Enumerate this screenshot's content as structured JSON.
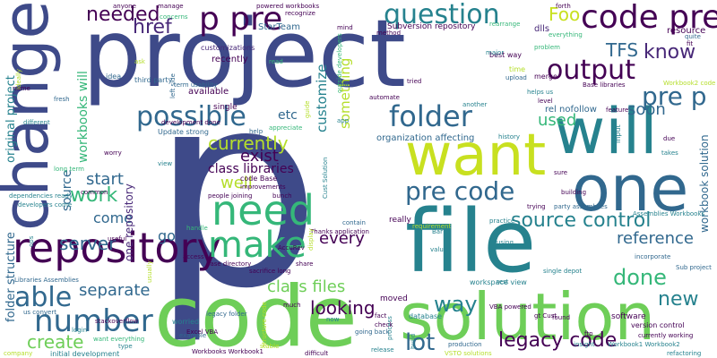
{
  "palette": {
    "purple": "#440154",
    "indigo": "#482878",
    "blue": "#3e4a89",
    "steel": "#31688e",
    "teal": "#26828e",
    "green": "#1f9e89",
    "mint": "#35b779",
    "lime": "#6ece58",
    "yellowgreen": "#b5de2b",
    "yellow": "#fde725"
  },
  "words": [
    {
      "text": "p",
      "color": "#3e4a89"
    },
    {
      "text": "project",
      "color": "#3e4a89"
    },
    {
      "text": "code",
      "color": "#6ece58"
    },
    {
      "text": "file",
      "color": "#26828e"
    },
    {
      "text": "change",
      "color": "#3e4a89"
    },
    {
      "text": "solution",
      "color": "#6ece58"
    },
    {
      "text": "want",
      "color": "#c8e020"
    },
    {
      "text": "will",
      "color": "#26828e"
    },
    {
      "text": "one",
      "color": "#31688e"
    },
    {
      "text": "repository",
      "color": "#440154"
    },
    {
      "text": "need",
      "color": "#35b779"
    },
    {
      "text": "make",
      "color": "#35b779"
    },
    {
      "text": "p pre",
      "color": "#440154"
    },
    {
      "text": "code pre",
      "color": "#440154"
    },
    {
      "text": "number",
      "color": "#31688e"
    },
    {
      "text": "question",
      "color": "#26828e"
    },
    {
      "text": "folder",
      "color": "#31688e"
    },
    {
      "text": "possible",
      "color": "#31688e"
    },
    {
      "text": "output",
      "color": "#440154"
    },
    {
      "text": "pre code",
      "color": "#31688e"
    },
    {
      "text": "source control",
      "color": "#26828e"
    },
    {
      "text": "able",
      "color": "#31688e"
    },
    {
      "text": "lot",
      "color": "#31688e"
    },
    {
      "text": "legacy code",
      "color": "#440154"
    },
    {
      "text": "done",
      "color": "#35b779"
    },
    {
      "text": "new",
      "color": "#26828e"
    },
    {
      "text": "work",
      "color": "#35b779"
    },
    {
      "text": "way",
      "color": "#26828e"
    },
    {
      "text": "pre p",
      "color": "#31688e"
    },
    {
      "text": "needed",
      "color": "#440154"
    },
    {
      "text": "href",
      "color": "#482878"
    },
    {
      "text": "TFS",
      "color": "#31688e"
    },
    {
      "text": "know",
      "color": "#482878"
    },
    {
      "text": "Foo",
      "color": "#c8e020"
    },
    {
      "text": "currently",
      "color": "#b5de2b"
    },
    {
      "text": "used",
      "color": "#35b779"
    },
    {
      "text": "soon",
      "color": "#31688e"
    },
    {
      "text": "reference",
      "color": "#31688e"
    },
    {
      "text": "class files",
      "color": "#6ece58"
    },
    {
      "text": "looking",
      "color": "#440154"
    },
    {
      "text": "every",
      "color": "#440154"
    },
    {
      "text": "server",
      "color": "#31688e"
    },
    {
      "text": "separate",
      "color": "#31688e"
    },
    {
      "text": "create",
      "color": "#6ece58"
    },
    {
      "text": "exist",
      "color": "#440154"
    },
    {
      "text": "well",
      "color": "#b5de2b"
    },
    {
      "text": "class libraries",
      "color": "#440154"
    },
    {
      "text": "start",
      "color": "#31688e"
    },
    {
      "text": "come",
      "color": "#31688e"
    },
    {
      "text": "go",
      "color": "#31688e"
    },
    {
      "text": "customize",
      "color": "#26828e"
    },
    {
      "text": "something",
      "color": "#b5de2b"
    },
    {
      "text": "etc",
      "color": "#31688e"
    },
    {
      "text": "workbooks will",
      "color": "#35b779"
    },
    {
      "text": "source",
      "color": "#31688e"
    },
    {
      "text": "original project",
      "color": "#26828e"
    },
    {
      "text": "folder structure",
      "color": "#31688e"
    },
    {
      "text": "workbook solution",
      "color": "#31688e"
    },
    {
      "text": "one repository",
      "color": "#482878"
    },
    {
      "text": "rel nofollow",
      "color": "#31688e"
    },
    {
      "text": "organization affecting",
      "color": "#31688e"
    },
    {
      "text": "dlls",
      "color": "#482878"
    },
    {
      "text": "resource",
      "color": "#440154"
    },
    {
      "text": "recently",
      "color": "#440154"
    },
    {
      "text": "customizations",
      "color": "#482878"
    },
    {
      "text": "StarTeam",
      "color": "#31688e"
    },
    {
      "text": "Subversion repository",
      "color": "#440154"
    },
    {
      "text": "Update strong",
      "color": "#31688e"
    },
    {
      "text": "code Base",
      "color": "#440154"
    },
    {
      "text": "available",
      "color": "#440154"
    },
    {
      "text": "single",
      "color": "#440154"
    },
    {
      "text": "third party",
      "color": "#31688e"
    },
    {
      "text": "idea",
      "color": "#31688e"
    },
    {
      "text": "time",
      "color": "#b5de2b"
    },
    {
      "text": "best way",
      "color": "#440154"
    },
    {
      "text": "merge",
      "color": "#440154"
    },
    {
      "text": "upload",
      "color": "#31688e"
    },
    {
      "text": "improvements",
      "color": "#440154"
    },
    {
      "text": "party assemblies",
      "color": "#31688e"
    },
    {
      "text": "people joining",
      "color": "#440154"
    },
    {
      "text": "Assemblies Workbooks",
      "color": "#26828e"
    },
    {
      "text": "VBA powered",
      "color": "#440154"
    },
    {
      "text": "workspace view",
      "color": "#26828e"
    },
    {
      "text": "production",
      "color": "#31688e"
    },
    {
      "text": "VSTO solutions",
      "color": "#b5de2b"
    },
    {
      "text": "version control",
      "color": "#440154"
    },
    {
      "text": "currently working",
      "color": "#440154"
    },
    {
      "text": "Workbook1 Workbook2",
      "color": "#26828e"
    },
    {
      "text": "refactoring",
      "color": "#26828e"
    },
    {
      "text": "software",
      "color": "#440154"
    },
    {
      "text": "Sub project",
      "color": "#31688e"
    },
    {
      "text": "database",
      "color": "#26828e"
    },
    {
      "text": "gt Cust",
      "color": "#440154"
    },
    {
      "text": "moved",
      "color": "#440154"
    },
    {
      "text": "really",
      "color": "#440154"
    },
    {
      "text": "Thanks application",
      "color": "#440154"
    },
    {
      "text": "contain",
      "color": "#31688e"
    },
    {
      "text": "legacy folder",
      "color": "#31688e"
    },
    {
      "text": "Excel VBA",
      "color": "#440154"
    },
    {
      "text": "worried",
      "color": "#26828e"
    },
    {
      "text": "initial development",
      "color": "#26828e"
    },
    {
      "text": "Workbooks Workbook1",
      "color": "#440154"
    },
    {
      "text": "going back",
      "color": "#31688e"
    },
    {
      "text": "stackoverflow",
      "color": "#440154"
    },
    {
      "text": "want everything",
      "color": "#35b779"
    },
    {
      "text": "us convert",
      "color": "#31688e"
    },
    {
      "text": "Libraries Assemblies",
      "color": "#31688e"
    },
    {
      "text": "developers come",
      "color": "#26828e"
    },
    {
      "text": "dependencies ready",
      "color": "#26828e"
    },
    {
      "text": "common",
      "color": "#440154"
    },
    {
      "text": "worry",
      "color": "#440154"
    },
    {
      "text": "long term",
      "color": "#35b779"
    },
    {
      "text": "powered workbooks",
      "color": "#440154"
    },
    {
      "text": "recognize",
      "color": "#440154"
    },
    {
      "text": "manage",
      "color": "#440154"
    },
    {
      "text": "anyone",
      "color": "#440154"
    },
    {
      "text": "Base libraries",
      "color": "#440154"
    },
    {
      "text": "helps us",
      "color": "#26828e"
    },
    {
      "text": "feature",
      "color": "#440154"
    },
    {
      "text": "input",
      "color": "#26828e"
    },
    {
      "text": "process",
      "color": "#26828e"
    },
    {
      "text": "found",
      "color": "#440154"
    },
    {
      "text": "insight",
      "color": "#26828e"
    },
    {
      "text": "ftp",
      "color": "#440154"
    },
    {
      "text": "AccuRev",
      "color": "#440154"
    },
    {
      "text": "share",
      "color": "#440154"
    },
    {
      "text": "much",
      "color": "#440154"
    },
    {
      "text": "login",
      "color": "#26828e"
    },
    {
      "text": "example",
      "color": "#31688e"
    },
    {
      "text": "type",
      "color": "#26828e"
    },
    {
      "text": "release",
      "color": "#26828e"
    },
    {
      "text": "difficult",
      "color": "#440154"
    },
    {
      "text": "view",
      "color": "#26828e"
    },
    {
      "text": "useful",
      "color": "#440154"
    },
    {
      "text": "building",
      "color": "#440154"
    },
    {
      "text": "using",
      "color": "#26828e"
    },
    {
      "text": "incorporate",
      "color": "#31688e"
    },
    {
      "text": "Bar",
      "color": "#26828e"
    },
    {
      "text": "single depot",
      "color": "#26828e"
    },
    {
      "text": "value",
      "color": "#26828e"
    },
    {
      "text": "trying",
      "color": "#440154"
    },
    {
      "text": "tried",
      "color": "#440154"
    },
    {
      "text": "method",
      "color": "#440154"
    },
    {
      "text": "automate",
      "color": "#440154"
    },
    {
      "text": "another",
      "color": "#26828e"
    },
    {
      "text": "level",
      "color": "#440154"
    },
    {
      "text": "history",
      "color": "#26828e"
    },
    {
      "text": "due",
      "color": "#440154"
    },
    {
      "text": "fit",
      "color": "#440154"
    },
    {
      "text": "mind",
      "color": "#440154"
    },
    {
      "text": "forth",
      "color": "#440154"
    },
    {
      "text": "takes",
      "color": "#26828e"
    },
    {
      "text": "quite",
      "color": "#31688e"
    },
    {
      "text": "sure",
      "color": "#440154"
    },
    {
      "text": "left side",
      "color": "#31688e"
    },
    {
      "text": "term usability",
      "color": "#31688e"
    },
    {
      "text": "name",
      "color": "#440154"
    },
    {
      "text": "fresh",
      "color": "#31688e"
    },
    {
      "text": "different",
      "color": "#26828e"
    },
    {
      "text": "help",
      "color": "#31688e"
    },
    {
      "text": "appreciate",
      "color": "#35b779"
    },
    {
      "text": "bunch",
      "color": "#440154"
    },
    {
      "text": "development done",
      "color": "#440154"
    },
    {
      "text": "handle",
      "color": "#35b779"
    },
    {
      "text": "access",
      "color": "#440154"
    },
    {
      "text": "base directory",
      "color": "#440154"
    },
    {
      "text": "sacrifice long",
      "color": "#440154"
    },
    {
      "text": "now",
      "color": "#26828e"
    },
    {
      "text": "fact",
      "color": "#440154"
    },
    {
      "text": "check",
      "color": "#440154"
    },
    {
      "text": "rest",
      "color": "#26828e"
    },
    {
      "text": "practice",
      "color": "#26828e"
    },
    {
      "text": "build",
      "color": "#26828e"
    },
    {
      "text": "Cust Solution",
      "color": "#26828e"
    },
    {
      "text": "major",
      "color": "#26828e"
    },
    {
      "text": "app",
      "color": "#26828e"
    },
    {
      "text": "concerns",
      "color": "#35b779"
    },
    {
      "text": "problem",
      "color": "#35b779"
    },
    {
      "text": "rearrange",
      "color": "#35b779"
    },
    {
      "text": "everything",
      "color": "#35b779"
    },
    {
      "text": "Workbook2 code",
      "color": "#b5de2b"
    },
    {
      "text": "outside developers",
      "color": "#35b779"
    },
    {
      "text": "guide",
      "color": "#b5de2b"
    },
    {
      "text": "bit",
      "color": "#31688e"
    },
    {
      "text": "read",
      "color": "#35b779"
    },
    {
      "text": "ask",
      "color": "#b5de2b"
    },
    {
      "text": "requirement",
      "color": "#b5de2b"
    },
    {
      "text": "ops",
      "color": "#26828e"
    },
    {
      "text": "company",
      "color": "#b5de2b"
    },
    {
      "text": "stable",
      "color": "#b5de2b"
    },
    {
      "text": "structure code",
      "color": "#b5de2b"
    },
    {
      "text": "display",
      "color": "#b5de2b"
    },
    {
      "text": "usually",
      "color": "#b5de2b"
    },
    {
      "text": "ideally",
      "color": "#b5de2b"
    }
  ]
}
